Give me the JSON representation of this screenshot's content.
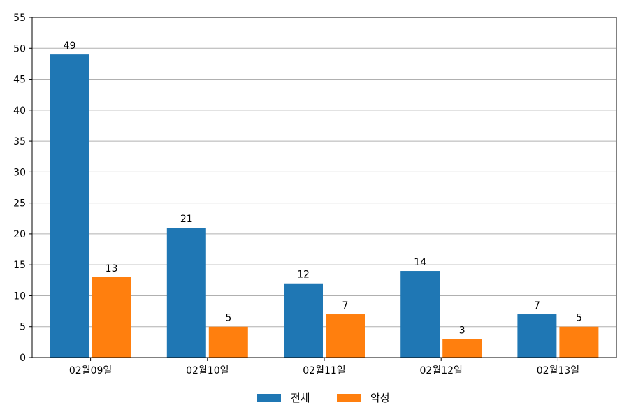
{
  "chart_data": {
    "type": "bar",
    "title": "",
    "xlabel": "",
    "ylabel": "",
    "categories": [
      "02월09일",
      "02월10일",
      "02월11일",
      "02월12일",
      "02월13일"
    ],
    "series": [
      {
        "name": "전체",
        "color": "#1f77b4",
        "values": [
          49,
          21,
          12,
          14,
          7
        ]
      },
      {
        "name": "악성",
        "color": "#ff7f0e",
        "values": [
          13,
          5,
          7,
          3,
          5
        ]
      }
    ],
    "ylim": [
      0,
      55
    ],
    "yticks": [
      0,
      5,
      10,
      15,
      20,
      25,
      30,
      35,
      40,
      45,
      50,
      55
    ],
    "grid": "horizontal",
    "legend": "bottom-center",
    "data_labels": true
  }
}
